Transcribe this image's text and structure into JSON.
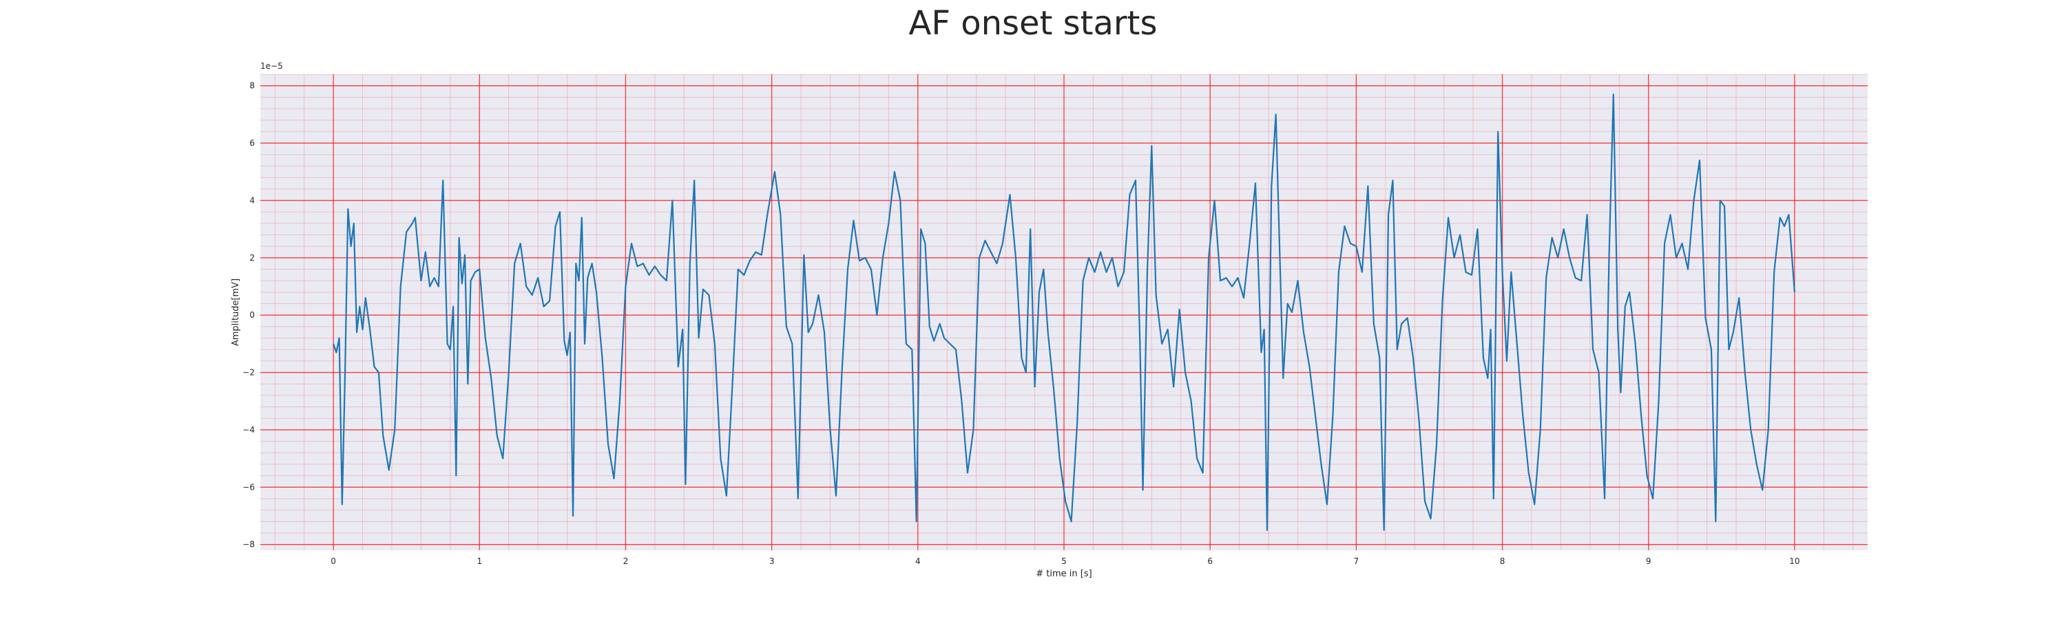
{
  "chart_data": {
    "type": "line",
    "title": "AF onset starts",
    "xlabel": "# time in [s]",
    "ylabel": "Amplitude[mV]",
    "y_offset_label": "1e−5",
    "xlim": [
      -0.5,
      10.5
    ],
    "ylim": [
      -8.2,
      8.4
    ],
    "x_ticks": [
      0,
      1,
      2,
      3,
      4,
      5,
      6,
      7,
      8,
      9,
      10
    ],
    "y_ticks": [
      -8,
      -6,
      -4,
      -2,
      0,
      2,
      4,
      6,
      8
    ],
    "grid": "major and minor, red",
    "background": "#eaeaf2",
    "line_color": "#1f77b4",
    "grid_color": "#ff0000",
    "series": [
      {
        "points": [
          [
            0.0,
            -1.0
          ],
          [
            0.02,
            -1.3
          ],
          [
            0.04,
            -0.8
          ],
          [
            0.06,
            -6.6
          ],
          [
            0.08,
            -2.0
          ],
          [
            0.1,
            3.7
          ],
          [
            0.12,
            2.4
          ],
          [
            0.14,
            3.2
          ],
          [
            0.16,
            -0.6
          ],
          [
            0.18,
            0.3
          ],
          [
            0.2,
            -0.5
          ],
          [
            0.22,
            0.6
          ],
          [
            0.25,
            -0.5
          ],
          [
            0.28,
            -1.8
          ],
          [
            0.31,
            -2.0
          ],
          [
            0.34,
            -4.2
          ],
          [
            0.38,
            -5.4
          ],
          [
            0.42,
            -4.0
          ],
          [
            0.46,
            1.0
          ],
          [
            0.5,
            2.9
          ],
          [
            0.54,
            3.2
          ],
          [
            0.56,
            3.4
          ],
          [
            0.6,
            1.2
          ],
          [
            0.63,
            2.2
          ],
          [
            0.66,
            1.0
          ],
          [
            0.69,
            1.3
          ],
          [
            0.72,
            1.0
          ],
          [
            0.75,
            4.7
          ],
          [
            0.78,
            -1.0
          ],
          [
            0.8,
            -1.2
          ],
          [
            0.82,
            0.3
          ],
          [
            0.84,
            -5.6
          ],
          [
            0.86,
            2.7
          ],
          [
            0.88,
            1.1
          ],
          [
            0.9,
            2.1
          ],
          [
            0.92,
            -2.4
          ],
          [
            0.94,
            1.2
          ],
          [
            0.97,
            1.5
          ],
          [
            1.0,
            1.6
          ],
          [
            1.04,
            -0.8
          ],
          [
            1.08,
            -2.2
          ],
          [
            1.12,
            -4.2
          ],
          [
            1.16,
            -5.0
          ],
          [
            1.2,
            -2.0
          ],
          [
            1.24,
            1.8
          ],
          [
            1.28,
            2.5
          ],
          [
            1.32,
            1.0
          ],
          [
            1.36,
            0.7
          ],
          [
            1.4,
            1.3
          ],
          [
            1.44,
            0.3
          ],
          [
            1.48,
            0.5
          ],
          [
            1.52,
            3.1
          ],
          [
            1.55,
            3.6
          ],
          [
            1.58,
            -0.9
          ],
          [
            1.6,
            -1.4
          ],
          [
            1.62,
            -0.6
          ],
          [
            1.64,
            -7.0
          ],
          [
            1.66,
            1.8
          ],
          [
            1.68,
            1.2
          ],
          [
            1.7,
            3.4
          ],
          [
            1.72,
            -1.0
          ],
          [
            1.74,
            1.3
          ],
          [
            1.77,
            1.8
          ],
          [
            1.8,
            0.8
          ],
          [
            1.84,
            -1.5
          ],
          [
            1.88,
            -4.5
          ],
          [
            1.92,
            -5.7
          ],
          [
            1.96,
            -3.0
          ],
          [
            2.0,
            1.0
          ],
          [
            2.04,
            2.5
          ],
          [
            2.08,
            1.7
          ],
          [
            2.12,
            1.8
          ],
          [
            2.16,
            1.4
          ],
          [
            2.2,
            1.7
          ],
          [
            2.24,
            1.4
          ],
          [
            2.28,
            1.2
          ],
          [
            2.32,
            4.0
          ],
          [
            2.36,
            -1.8
          ],
          [
            2.39,
            -0.5
          ],
          [
            2.41,
            -5.9
          ],
          [
            2.44,
            1.8
          ],
          [
            2.47,
            4.7
          ],
          [
            2.5,
            -0.8
          ],
          [
            2.53,
            0.9
          ],
          [
            2.57,
            0.7
          ],
          [
            2.61,
            -1.0
          ],
          [
            2.65,
            -5.0
          ],
          [
            2.69,
            -6.3
          ],
          [
            2.73,
            -2.5
          ],
          [
            2.77,
            1.6
          ],
          [
            2.81,
            1.4
          ],
          [
            2.85,
            1.9
          ],
          [
            2.89,
            2.2
          ],
          [
            2.93,
            2.1
          ],
          [
            2.97,
            3.5
          ],
          [
            3.02,
            5.0
          ],
          [
            3.06,
            3.5
          ],
          [
            3.1,
            -0.4
          ],
          [
            3.14,
            -1.0
          ],
          [
            3.18,
            -6.4
          ],
          [
            3.22,
            2.1
          ],
          [
            3.25,
            -0.6
          ],
          [
            3.28,
            -0.3
          ],
          [
            3.32,
            0.7
          ],
          [
            3.36,
            -0.6
          ],
          [
            3.4,
            -4.0
          ],
          [
            3.44,
            -6.3
          ],
          [
            3.48,
            -2.0
          ],
          [
            3.52,
            1.6
          ],
          [
            3.56,
            3.3
          ],
          [
            3.6,
            1.9
          ],
          [
            3.64,
            2.0
          ],
          [
            3.68,
            1.6
          ],
          [
            3.72,
            0.0
          ],
          [
            3.76,
            2.0
          ],
          [
            3.8,
            3.2
          ],
          [
            3.84,
            5.0
          ],
          [
            3.88,
            4.0
          ],
          [
            3.92,
            -1.0
          ],
          [
            3.96,
            -1.2
          ],
          [
            3.99,
            -7.2
          ],
          [
            4.02,
            3.0
          ],
          [
            4.05,
            2.5
          ],
          [
            4.08,
            -0.4
          ],
          [
            4.11,
            -0.9
          ],
          [
            4.15,
            -0.3
          ],
          [
            4.18,
            -0.8
          ],
          [
            4.22,
            -1.0
          ],
          [
            4.26,
            -1.2
          ],
          [
            4.3,
            -3.0
          ],
          [
            4.34,
            -5.5
          ],
          [
            4.38,
            -4.0
          ],
          [
            4.42,
            2.0
          ],
          [
            4.46,
            2.6
          ],
          [
            4.5,
            2.2
          ],
          [
            4.54,
            1.8
          ],
          [
            4.58,
            2.5
          ],
          [
            4.63,
            4.2
          ],
          [
            4.67,
            2.0
          ],
          [
            4.71,
            -1.5
          ],
          [
            4.74,
            -2.0
          ],
          [
            4.77,
            3.0
          ],
          [
            4.8,
            -2.5
          ],
          [
            4.83,
            0.8
          ],
          [
            4.86,
            1.6
          ],
          [
            4.89,
            -0.6
          ],
          [
            4.93,
            -2.6
          ],
          [
            4.97,
            -5.0
          ],
          [
            5.01,
            -6.5
          ],
          [
            5.05,
            -7.2
          ],
          [
            5.09,
            -3.8
          ],
          [
            5.13,
            1.2
          ],
          [
            5.17,
            2.0
          ],
          [
            5.21,
            1.5
          ],
          [
            5.25,
            2.2
          ],
          [
            5.29,
            1.5
          ],
          [
            5.33,
            2.0
          ],
          [
            5.37,
            1.0
          ],
          [
            5.41,
            1.5
          ],
          [
            5.45,
            4.2
          ],
          [
            5.49,
            4.7
          ],
          [
            5.52,
            -1.0
          ],
          [
            5.54,
            -6.1
          ],
          [
            5.57,
            1.5
          ],
          [
            5.6,
            5.9
          ],
          [
            5.63,
            0.7
          ],
          [
            5.67,
            -1.0
          ],
          [
            5.71,
            -0.5
          ],
          [
            5.75,
            -2.5
          ],
          [
            5.79,
            0.2
          ],
          [
            5.83,
            -2.0
          ],
          [
            5.87,
            -3.0
          ],
          [
            5.91,
            -5.0
          ],
          [
            5.95,
            -5.5
          ],
          [
            5.99,
            2.0
          ],
          [
            6.03,
            4.0
          ],
          [
            6.07,
            1.2
          ],
          [
            6.11,
            1.3
          ],
          [
            6.15,
            1.0
          ],
          [
            6.19,
            1.3
          ],
          [
            6.23,
            0.6
          ],
          [
            6.27,
            2.5
          ],
          [
            6.31,
            4.6
          ],
          [
            6.35,
            -1.3
          ],
          [
            6.37,
            -0.5
          ],
          [
            6.39,
            -7.5
          ],
          [
            6.42,
            4.5
          ],
          [
            6.45,
            7.0
          ],
          [
            6.48,
            1.5
          ],
          [
            6.5,
            -2.2
          ],
          [
            6.53,
            0.4
          ],
          [
            6.56,
            0.1
          ],
          [
            6.6,
            1.2
          ],
          [
            6.64,
            -0.6
          ],
          [
            6.68,
            -1.8
          ],
          [
            6.72,
            -3.5
          ],
          [
            6.76,
            -5.2
          ],
          [
            6.8,
            -6.6
          ],
          [
            6.84,
            -3.5
          ],
          [
            6.88,
            1.5
          ],
          [
            6.92,
            3.1
          ],
          [
            6.96,
            2.5
          ],
          [
            7.0,
            2.4
          ],
          [
            7.04,
            1.5
          ],
          [
            7.08,
            4.5
          ],
          [
            7.12,
            -0.3
          ],
          [
            7.16,
            -1.5
          ],
          [
            7.19,
            -7.5
          ],
          [
            7.22,
            3.5
          ],
          [
            7.25,
            4.7
          ],
          [
            7.28,
            -1.2
          ],
          [
            7.31,
            -0.3
          ],
          [
            7.35,
            -0.1
          ],
          [
            7.39,
            -1.5
          ],
          [
            7.43,
            -3.7
          ],
          [
            7.47,
            -6.5
          ],
          [
            7.51,
            -7.1
          ],
          [
            7.55,
            -4.5
          ],
          [
            7.59,
            0.5
          ],
          [
            7.63,
            3.4
          ],
          [
            7.67,
            2.0
          ],
          [
            7.71,
            2.8
          ],
          [
            7.75,
            1.5
          ],
          [
            7.79,
            1.4
          ],
          [
            7.83,
            3.0
          ],
          [
            7.87,
            -1.5
          ],
          [
            7.9,
            -2.2
          ],
          [
            7.92,
            -0.5
          ],
          [
            7.94,
            -6.4
          ],
          [
            7.97,
            6.4
          ],
          [
            8.0,
            1.5
          ],
          [
            8.03,
            -1.6
          ],
          [
            8.06,
            1.5
          ],
          [
            8.1,
            -1.0
          ],
          [
            8.14,
            -3.5
          ],
          [
            8.18,
            -5.5
          ],
          [
            8.22,
            -6.6
          ],
          [
            8.26,
            -4.0
          ],
          [
            8.3,
            1.3
          ],
          [
            8.34,
            2.7
          ],
          [
            8.38,
            2.0
          ],
          [
            8.42,
            3.0
          ],
          [
            8.46,
            2.0
          ],
          [
            8.5,
            1.3
          ],
          [
            8.54,
            1.2
          ],
          [
            8.58,
            3.5
          ],
          [
            8.62,
            -1.2
          ],
          [
            8.66,
            -2.0
          ],
          [
            8.7,
            -6.4
          ],
          [
            8.73,
            2.0
          ],
          [
            8.76,
            7.7
          ],
          [
            8.79,
            -0.5
          ],
          [
            8.81,
            -2.7
          ],
          [
            8.84,
            0.3
          ],
          [
            8.87,
            0.8
          ],
          [
            8.91,
            -1.0
          ],
          [
            8.95,
            -3.5
          ],
          [
            8.99,
            -5.6
          ],
          [
            9.03,
            -6.4
          ],
          [
            9.07,
            -3.0
          ],
          [
            9.11,
            2.5
          ],
          [
            9.15,
            3.5
          ],
          [
            9.19,
            2.0
          ],
          [
            9.23,
            2.5
          ],
          [
            9.27,
            1.6
          ],
          [
            9.31,
            4.0
          ],
          [
            9.35,
            5.4
          ],
          [
            9.39,
            -0.1
          ],
          [
            9.43,
            -1.2
          ],
          [
            9.46,
            -7.2
          ],
          [
            9.49,
            4.0
          ],
          [
            9.52,
            3.8
          ],
          [
            9.55,
            -1.2
          ],
          [
            9.58,
            -0.6
          ],
          [
            9.62,
            0.6
          ],
          [
            9.66,
            -2.0
          ],
          [
            9.7,
            -4.0
          ],
          [
            9.74,
            -5.2
          ],
          [
            9.78,
            -6.1
          ],
          [
            9.82,
            -4.0
          ],
          [
            9.86,
            1.5
          ],
          [
            9.9,
            3.4
          ],
          [
            9.93,
            3.1
          ],
          [
            9.96,
            3.5
          ],
          [
            10.0,
            0.8
          ]
        ]
      }
    ]
  }
}
